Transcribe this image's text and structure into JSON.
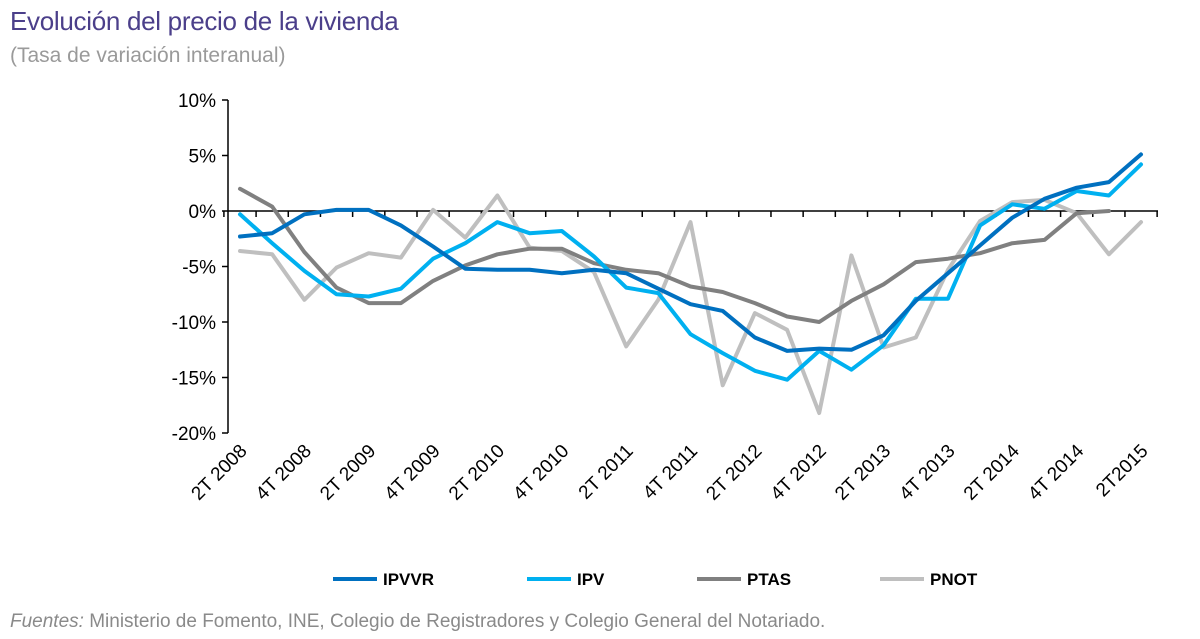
{
  "title": "Evolución del precio de la vivienda",
  "subtitle": "(Tasa de variación interanual)",
  "footer": {
    "label": "Fuentes:",
    "text": " Ministerio de Fomento, INE, Colegio de Registradores y Colegio General del Notariado."
  },
  "chart_data": {
    "type": "line",
    "title": "Evolución del precio de la vivienda",
    "subtitle": "(Tasa de variación interanual)",
    "ylim": [
      -20,
      10
    ],
    "yticks": [
      10,
      5,
      0,
      -5,
      -10,
      -15,
      -20
    ],
    "ytick_labels": [
      "10%",
      "5%",
      "0%",
      "-5%",
      "-10%",
      "-15%",
      "-20%"
    ],
    "unit": "%",
    "legend_position": "bottom",
    "grid": false,
    "categories": [
      "2T 2008",
      "3T 2008",
      "4T 2008",
      "1T 2009",
      "2T 2009",
      "3T 2009",
      "4T 2009",
      "1T 2010",
      "2T 2010",
      "3T 2010",
      "4T 2010",
      "1T 2011",
      "2T 2011",
      "3T 2011",
      "4T 2011",
      "1T 2012",
      "2T 2012",
      "3T 2012",
      "4T 2012",
      "1T 2013",
      "2T 2013",
      "3T 2013",
      "4T 2013",
      "1T 2014",
      "2T 2014",
      "3T 2014",
      "4T 2014",
      "1T 2015",
      "2T2015"
    ],
    "xtick_labels": [
      "2T 2008",
      "4T 2008",
      "2T 2009",
      "4T 2009",
      "2T 2010",
      "4T 2010",
      "2T 2011",
      "4T 2011",
      "2T 2012",
      "4T 2012",
      "2T 2013",
      "4T 2013",
      "2T 2014",
      "4T 2014",
      "2T2015"
    ],
    "series": [
      {
        "name": "IPVVR",
        "color": "#0070c0",
        "values": [
          -2.3,
          -2.0,
          -0.3,
          0.1,
          0.1,
          -1.3,
          -3.2,
          -5.2,
          -5.3,
          -5.3,
          -5.6,
          -5.3,
          -5.6,
          -7.0,
          -8.4,
          -9.0,
          -11.4,
          -12.6,
          -12.4,
          -12.5,
          -11.2,
          -8.1,
          -5.6,
          -3.1,
          -0.6,
          1.1,
          2.1,
          2.6,
          5.1
        ]
      },
      {
        "name": "IPV",
        "color": "#00b0f0",
        "values": [
          -0.3,
          -2.9,
          -5.4,
          -7.5,
          -7.7,
          -7.0,
          -4.3,
          -2.9,
          -1.0,
          -2.0,
          -1.8,
          -4.1,
          -6.9,
          -7.4,
          -11.1,
          -12.8,
          -14.4,
          -15.2,
          -12.6,
          -14.3,
          -12.1,
          -7.9,
          -7.9,
          -1.3,
          0.6,
          0.2,
          1.8,
          1.4,
          4.2
        ]
      },
      {
        "name": "PTAS",
        "color": "#808080",
        "values": [
          2.0,
          0.4,
          -3.7,
          -6.9,
          -8.3,
          -8.3,
          -6.3,
          -4.9,
          -3.9,
          -3.4,
          -3.4,
          -4.7,
          -5.3,
          -5.6,
          -6.8,
          -7.3,
          -8.3,
          -9.5,
          -10.0,
          -8.1,
          -6.6,
          -4.6,
          -4.3,
          -3.8,
          -2.9,
          -2.6,
          -0.2,
          0.0,
          null
        ]
      },
      {
        "name": "PNOT",
        "color": "#bfbfbf",
        "values": [
          -3.6,
          -3.9,
          -8.0,
          -5.1,
          -3.8,
          -4.2,
          0.1,
          -2.4,
          1.4,
          -3.3,
          -3.6,
          -5.5,
          -12.2,
          -8.0,
          -1.0,
          -15.7,
          -9.2,
          -10.7,
          -18.2,
          -4.0,
          -12.3,
          -11.4,
          -5.3,
          -0.9,
          0.8,
          1.0,
          -0.2,
          -3.9,
          -1.0
        ]
      }
    ]
  }
}
